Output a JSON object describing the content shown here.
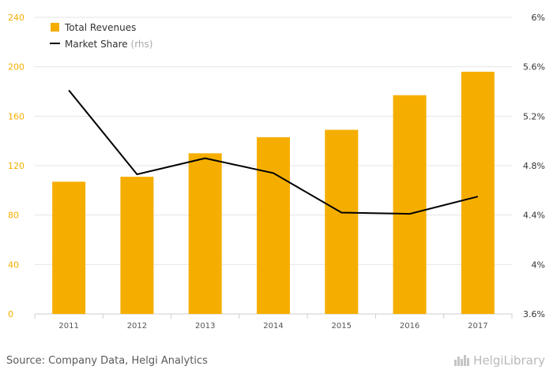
{
  "chart_data": {
    "type": "bar+line",
    "categories": [
      "2011",
      "2012",
      "2013",
      "2014",
      "2015",
      "2016",
      "2017"
    ],
    "series": [
      {
        "name": "Total Revenues",
        "type": "bar",
        "axis": "left",
        "color": "#f5ae00",
        "values": [
          107,
          111,
          130,
          143,
          149,
          177,
          196
        ]
      },
      {
        "name": "Market Share",
        "suffix": "(rhs)",
        "type": "line",
        "axis": "right",
        "color": "#000000",
        "values": [
          5.41,
          4.73,
          4.86,
          4.74,
          4.42,
          4.41,
          4.55
        ]
      }
    ],
    "left_axis": {
      "min": 0,
      "max": 240,
      "ticks": [
        0,
        40,
        80,
        120,
        160,
        200,
        240
      ],
      "tick_labels": [
        "0",
        "40",
        "80",
        "120",
        "160",
        "200",
        "240"
      ],
      "color": "#f5ae00"
    },
    "right_axis": {
      "min": 3.6,
      "max": 6.0,
      "ticks": [
        3.6,
        4.0,
        4.4,
        4.8,
        5.2,
        5.6,
        6.0
      ],
      "tick_labels": [
        "3.6%",
        "4%",
        "4.4%",
        "4.8%",
        "5.2%",
        "5.6%",
        "6%"
      ],
      "color": "#333333"
    },
    "legend_position": "top-left",
    "grid": true
  },
  "footer": {
    "source": "Source: Company Data, Helgi Analytics",
    "brand": "HelgiLibrary"
  }
}
